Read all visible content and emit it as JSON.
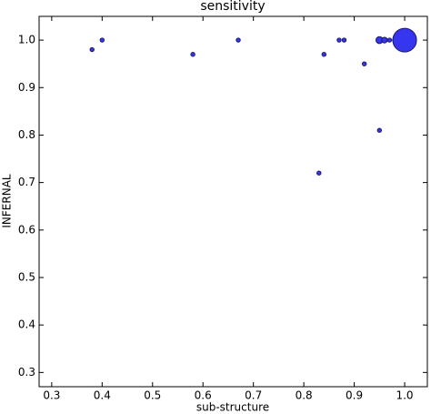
{
  "chart_data": {
    "type": "scatter",
    "title": "sensitivity",
    "x_label": "sub-structure",
    "y_label": "INFERNAL",
    "xlim": [
      0.275,
      1.045
    ],
    "ylim": [
      0.27,
      1.05
    ],
    "xticks": [
      0.3,
      0.4,
      0.5,
      0.6,
      0.7,
      0.8,
      0.9,
      {
        "value": 1,
        "label": "1.0"
      }
    ],
    "yticks": [
      0.3,
      0.4,
      0.5,
      0.6,
      0.7,
      0.8,
      0.9,
      {
        "value": 1,
        "label": "1.0"
      }
    ],
    "grid": false,
    "series": [
      {
        "color": "#3636f0",
        "edge_color": "#1a1a66",
        "x": [
          0.38,
          0.4,
          0.58,
          0.67,
          0.83,
          0.84,
          0.87,
          0.88,
          0.92,
          0.95,
          0.95,
          0.96,
          0.97,
          0.98,
          1.0
        ],
        "values": [
          0.98,
          1.0,
          0.97,
          1.0,
          0.72,
          0.97,
          1.0,
          1.0,
          0.95,
          0.81,
          1.0,
          1.0,
          1.0,
          1.0,
          1.0
        ],
        "sizes": [
          1,
          1,
          1,
          1,
          1,
          1,
          1,
          1,
          1,
          1,
          3,
          2,
          1,
          1,
          35
        ]
      }
    ]
  }
}
